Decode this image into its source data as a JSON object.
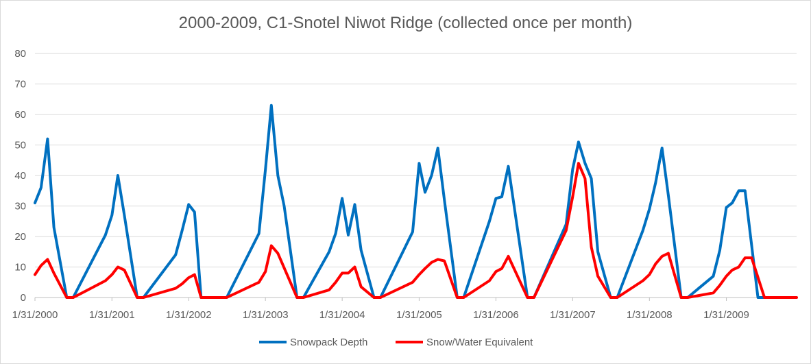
{
  "chart_data": {
    "type": "line",
    "title": "2000-2009, C1-Snotel Niwot Ridge (collected once per month)",
    "xlabel": "",
    "ylabel": "",
    "ylim": [
      0,
      80
    ],
    "yticks": [
      0,
      10,
      20,
      30,
      40,
      50,
      60,
      70,
      80
    ],
    "xlim": [
      "2000-01-31",
      "2009-12-31"
    ],
    "xtick_labels": [
      "1/31/2000",
      "1/31/2001",
      "1/31/2002",
      "1/31/2003",
      "1/31/2004",
      "1/31/2005",
      "1/31/2006",
      "1/31/2007",
      "1/31/2008",
      "1/31/2009"
    ],
    "grid": true,
    "legend_position": "bottom",
    "series": [
      {
        "name": "Snowpack Depth",
        "color": "#0070c0",
        "points": [
          [
            "2000-01-31",
            31
          ],
          [
            "2000-02-29",
            36
          ],
          [
            "2000-03-31",
            52
          ],
          [
            "2000-04-30",
            23
          ],
          [
            "2000-06-30",
            0
          ],
          [
            "2000-07-31",
            0
          ],
          [
            "2000-12-31",
            20.5
          ],
          [
            "2001-01-31",
            27
          ],
          [
            "2001-02-28",
            40
          ],
          [
            "2001-03-31",
            27
          ],
          [
            "2001-05-31",
            0
          ],
          [
            "2001-06-30",
            0
          ],
          [
            "2001-11-30",
            14
          ],
          [
            "2001-12-31",
            22
          ],
          [
            "2002-01-31",
            30.5
          ],
          [
            "2002-02-28",
            28
          ],
          [
            "2002-03-31",
            0
          ],
          [
            "2002-07-31",
            0
          ],
          [
            "2002-12-31",
            21
          ],
          [
            "2003-01-31",
            42
          ],
          [
            "2003-02-28",
            63
          ],
          [
            "2003-03-31",
            40
          ],
          [
            "2003-04-30",
            30
          ],
          [
            "2003-06-30",
            0
          ],
          [
            "2003-07-31",
            0
          ],
          [
            "2003-11-30",
            15
          ],
          [
            "2003-12-31",
            21
          ],
          [
            "2004-01-31",
            32.5
          ],
          [
            "2004-02-29",
            20.5
          ],
          [
            "2004-03-31",
            30.5
          ],
          [
            "2004-04-30",
            15.5
          ],
          [
            "2004-06-30",
            0
          ],
          [
            "2004-07-31",
            0
          ],
          [
            "2004-12-31",
            21.5
          ],
          [
            "2005-01-31",
            44
          ],
          [
            "2005-02-28",
            34.5
          ],
          [
            "2005-03-31",
            40
          ],
          [
            "2005-04-30",
            49
          ],
          [
            "2005-05-31",
            32
          ],
          [
            "2005-07-31",
            0
          ],
          [
            "2005-08-31",
            0
          ],
          [
            "2005-12-31",
            25
          ],
          [
            "2006-01-31",
            32.5
          ],
          [
            "2006-02-28",
            33
          ],
          [
            "2006-03-31",
            43
          ],
          [
            "2006-06-30",
            0
          ],
          [
            "2006-07-31",
            0
          ],
          [
            "2006-12-31",
            24
          ],
          [
            "2007-01-31",
            42
          ],
          [
            "2007-02-28",
            51
          ],
          [
            "2007-03-31",
            44
          ],
          [
            "2007-04-30",
            39
          ],
          [
            "2007-05-31",
            15
          ],
          [
            "2007-07-31",
            0
          ],
          [
            "2007-08-31",
            0
          ],
          [
            "2007-12-31",
            22
          ],
          [
            "2008-01-31",
            29
          ],
          [
            "2008-02-29",
            37.5
          ],
          [
            "2008-03-31",
            49
          ],
          [
            "2008-04-30",
            33.5
          ],
          [
            "2008-06-30",
            0
          ],
          [
            "2008-07-31",
            0
          ],
          [
            "2008-11-30",
            7
          ],
          [
            "2008-12-31",
            15.5
          ],
          [
            "2009-01-31",
            29.5
          ],
          [
            "2009-02-28",
            31
          ],
          [
            "2009-03-31",
            35
          ],
          [
            "2009-04-30",
            35
          ],
          [
            "2009-06-30",
            0
          ],
          [
            "2009-07-31",
            0
          ]
        ]
      },
      {
        "name": "Snow/Water Equivalent",
        "color": "#ff0000",
        "points": [
          [
            "2000-01-31",
            7.5
          ],
          [
            "2000-02-29",
            10.5
          ],
          [
            "2000-03-31",
            12.5
          ],
          [
            "2000-04-30",
            8
          ],
          [
            "2000-06-30",
            0
          ],
          [
            "2000-07-31",
            0
          ],
          [
            "2000-12-31",
            5.5
          ],
          [
            "2001-01-31",
            7.5
          ],
          [
            "2001-02-28",
            10
          ],
          [
            "2001-03-31",
            9
          ],
          [
            "2001-05-31",
            0
          ],
          [
            "2001-06-30",
            0
          ],
          [
            "2001-11-30",
            3
          ],
          [
            "2001-12-31",
            4.5
          ],
          [
            "2002-01-31",
            6.5
          ],
          [
            "2002-02-28",
            7.5
          ],
          [
            "2002-03-31",
            0
          ],
          [
            "2002-07-31",
            0
          ],
          [
            "2002-12-31",
            5
          ],
          [
            "2003-01-31",
            8.5
          ],
          [
            "2003-02-28",
            17
          ],
          [
            "2003-03-31",
            14.5
          ],
          [
            "2003-06-30",
            0
          ],
          [
            "2003-07-31",
            0
          ],
          [
            "2003-11-30",
            2.5
          ],
          [
            "2003-12-31",
            5
          ],
          [
            "2004-01-31",
            8
          ],
          [
            "2004-02-29",
            8
          ],
          [
            "2004-03-31",
            10
          ],
          [
            "2004-04-30",
            3.5
          ],
          [
            "2004-06-30",
            0
          ],
          [
            "2004-07-31",
            0
          ],
          [
            "2004-12-31",
            5
          ],
          [
            "2005-01-31",
            7.5
          ],
          [
            "2005-02-28",
            9.5
          ],
          [
            "2005-03-31",
            11.5
          ],
          [
            "2005-04-30",
            12.5
          ],
          [
            "2005-05-31",
            12
          ],
          [
            "2005-07-31",
            0
          ],
          [
            "2005-08-31",
            0
          ],
          [
            "2005-12-31",
            5.5
          ],
          [
            "2006-01-31",
            8.5
          ],
          [
            "2006-02-28",
            9.5
          ],
          [
            "2006-03-31",
            13.5
          ],
          [
            "2006-06-30",
            0
          ],
          [
            "2006-07-31",
            0
          ],
          [
            "2006-12-31",
            22
          ],
          [
            "2007-01-31",
            33
          ],
          [
            "2007-02-28",
            44
          ],
          [
            "2007-03-31",
            39
          ],
          [
            "2007-04-30",
            16.5
          ],
          [
            "2007-05-31",
            7
          ],
          [
            "2007-07-31",
            0
          ],
          [
            "2007-08-31",
            0
          ],
          [
            "2007-12-31",
            5.5
          ],
          [
            "2008-01-31",
            7.5
          ],
          [
            "2008-02-29",
            11
          ],
          [
            "2008-03-31",
            13.5
          ],
          [
            "2008-04-30",
            14.5
          ],
          [
            "2008-06-30",
            0
          ],
          [
            "2008-07-31",
            0
          ],
          [
            "2008-11-30",
            1.5
          ],
          [
            "2008-12-31",
            4
          ],
          [
            "2009-01-31",
            7
          ],
          [
            "2009-02-28",
            9
          ],
          [
            "2009-03-31",
            10
          ],
          [
            "2009-04-30",
            13
          ],
          [
            "2009-05-31",
            13
          ],
          [
            "2009-07-31",
            0
          ],
          [
            "2009-08-31",
            0
          ],
          [
            "2009-12-31",
            0
          ]
        ]
      }
    ]
  }
}
